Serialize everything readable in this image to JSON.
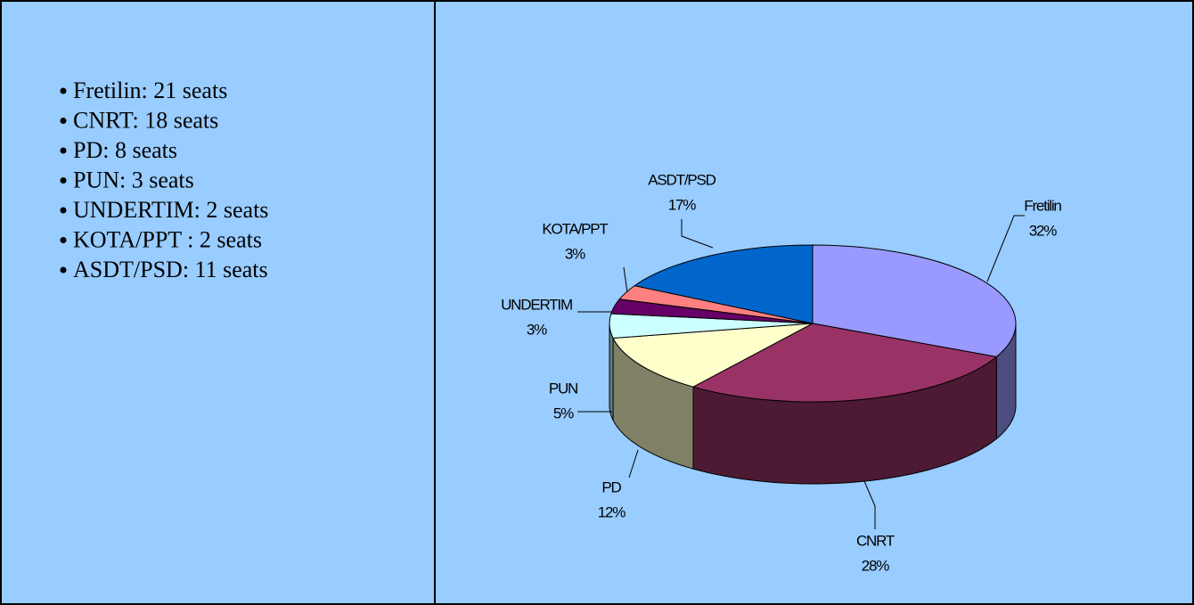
{
  "list": {
    "items": [
      "Fretilin: 21 seats",
      "CNRT: 18 seats",
      "PD: 8 seats",
      "PUN: 3 seats",
      "UNDERTIM: 2 seats",
      "KOTA/PPT : 2 seats",
      "ASDT/PSD: 11 seats"
    ]
  },
  "chart_data": {
    "type": "pie",
    "categories": [
      "Fretilin",
      "CNRT",
      "PD",
      "PUN",
      "UNDERTIM",
      "KOTA/PPT",
      "ASDT/PSD"
    ],
    "values": [
      32,
      28,
      12,
      5,
      3,
      3,
      17
    ],
    "value_labels": [
      "32%",
      "28%",
      "12%",
      "5%",
      "3%",
      "3%",
      "17%"
    ],
    "colors": [
      "#9999ff",
      "#993366",
      "#ffffcc",
      "#ccffff",
      "#660066",
      "#ff8080",
      "#0066cc"
    ]
  }
}
